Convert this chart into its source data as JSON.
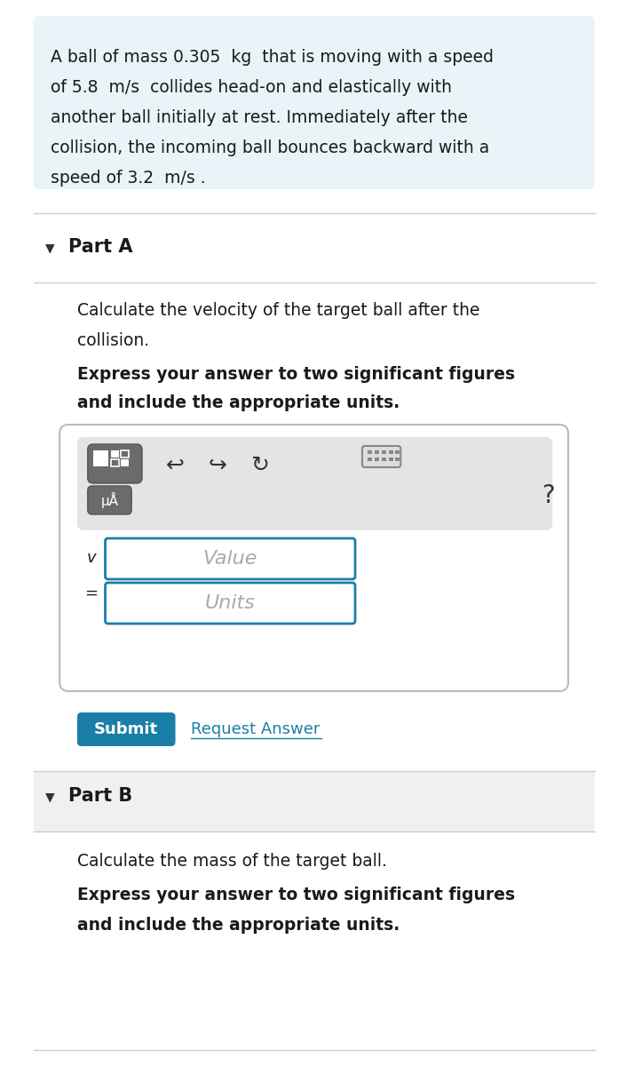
{
  "bg_color": "#ffffff",
  "intro_bg": "#e8f4f8",
  "intro_text_line1": "A ball of mass 0.305  kg  that is moving with a speed",
  "intro_text_line2": "of 5.8  m/s  collides head-on and elastically with",
  "intro_text_line3": "another ball initially at rest. Immediately after the",
  "intro_text_line4": "collision, the incoming ball bounces backward with a",
  "intro_text_line5": "speed of 3.2  m/s .",
  "part_a_label": "Part A",
  "part_a_q1": "Calculate the velocity of the target ball after the",
  "part_a_q2": "collision.",
  "part_a_bold1": "Express your answer to two significant figures",
  "part_a_bold2": "and include the appropriate units.",
  "input_border_color": "#1a7fa8",
  "value_placeholder": "Value",
  "units_placeholder": "Units",
  "v_label": "v",
  "eq_label": "=",
  "submit_bg": "#1a7fa8",
  "submit_text": "Submit",
  "request_text": "Request Answer",
  "request_color": "#1a7fa8",
  "part_b_label": "Part B",
  "part_b_q1": "Calculate the mass of the target ball.",
  "part_b_bold1": "Express your answer to two significant figures",
  "part_b_bold2": "and include the appropriate units.",
  "divider_color": "#cccccc",
  "part_b_bg": "#f0f0f0",
  "triangle_color": "#333333",
  "question_mark": "?"
}
